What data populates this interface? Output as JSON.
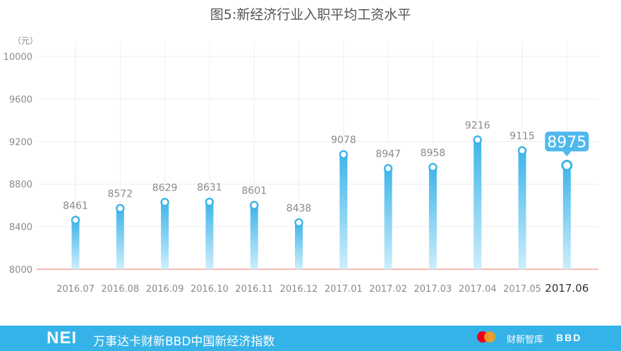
{
  "title": "图5:新经济行业入职平均工资水平",
  "chart_data": {
    "type": "bar",
    "unit_label": "（元）",
    "categories": [
      "2016.07",
      "2016.08",
      "2016.09",
      "2016.10",
      "2016.11",
      "2016.12",
      "2017.01",
      "2017.02",
      "2017.03",
      "2017.04",
      "2017.05",
      "2017.06"
    ],
    "values": [
      8461,
      8572,
      8629,
      8631,
      8601,
      8438,
      9078,
      8947,
      8958,
      9216,
      9115,
      8975
    ],
    "ylim": [
      8000,
      10000
    ],
    "yticks": [
      8000,
      8400,
      8800,
      9200,
      9600,
      10000
    ],
    "highlight_index": 11,
    "grid": true,
    "colors": {
      "bar_top": "#3fb5ea",
      "bar_bottom": "#cdeefb",
      "baseline": "#f4b9b2",
      "grid": "#eeeeee",
      "highlight": "#4fb8ec"
    }
  },
  "footer": {
    "logo": "NEI",
    "text": "万事达卡财新BBD中国新经济指数",
    "partner_1": "mastercard-logo",
    "partner_2": "财新智库",
    "partner_3": "BBD"
  }
}
